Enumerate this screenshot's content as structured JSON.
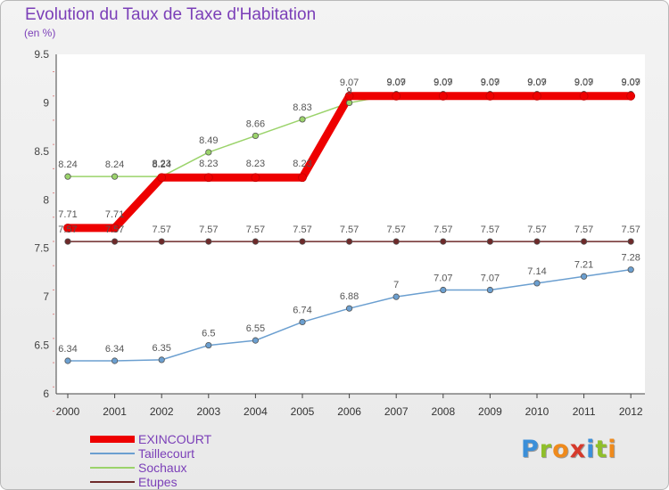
{
  "chart_data": {
    "type": "line",
    "title": "Evolution du Taux de Taxe d'Habitation",
    "subtitle": "(en %)",
    "xlabel": "",
    "ylabel": "",
    "ylim": [
      6,
      9.5
    ],
    "yticks": [
      "6",
      "6.5",
      "7",
      "7.5",
      "8",
      "8.5",
      "9",
      "9.5"
    ],
    "categories": [
      "2000",
      "2001",
      "2002",
      "2003",
      "2004",
      "2005",
      "2006",
      "2007",
      "2008",
      "2009",
      "2010",
      "2011",
      "2012"
    ],
    "grid": false,
    "legend_position": "bottom-left",
    "series": [
      {
        "name": "Etupes",
        "color": "#6e2a2a",
        "values": [
          7.57,
          7.57,
          7.57,
          7.57,
          7.57,
          7.57,
          7.57,
          7.57,
          7.57,
          7.57,
          7.57,
          7.57,
          7.57
        ],
        "labels": [
          "7.57",
          "7.57",
          "7.57",
          "7.57",
          "7.57",
          "7.57",
          "7.57",
          "7.57",
          "7.57",
          "7.57",
          "7.57",
          "7.57",
          "7.57"
        ]
      },
      {
        "name": "Taillecourt",
        "color": "#6b9fd0",
        "values": [
          6.34,
          6.34,
          6.35,
          6.5,
          6.55,
          6.74,
          6.88,
          7.0,
          7.07,
          7.07,
          7.14,
          7.21,
          7.28
        ],
        "labels": [
          "6.34",
          "6.34",
          "6.35",
          "6.5",
          "6.55",
          "6.74",
          "6.88",
          "7",
          "7.07",
          "7.07",
          "7.14",
          "7.21",
          "7.28"
        ]
      },
      {
        "name": "Sochaux",
        "color": "#9bd36b",
        "values": [
          8.24,
          8.24,
          8.24,
          8.49,
          8.66,
          8.83,
          9.0,
          9.09,
          9.09,
          9.09,
          9.09,
          9.09,
          9.09
        ],
        "labels": [
          "8.24",
          "8.24",
          "8.24",
          "8.49",
          "8.66",
          "8.83",
          "9",
          "9.09",
          "9.09",
          "9.09",
          "9.09",
          "9.09",
          "9.09"
        ]
      },
      {
        "name": "EXINCOURT",
        "color": "#ee0000",
        "values": [
          7.71,
          7.71,
          8.23,
          8.23,
          8.23,
          8.23,
          9.07,
          9.07,
          9.07,
          9.07,
          9.07,
          9.07,
          9.07
        ],
        "labels": [
          "7.71",
          "7.71",
          "8.23",
          "8.23",
          "8.23",
          "8.23",
          "9.07",
          "9.07",
          "9.07",
          "9.07",
          "9.07",
          "9.07",
          "9.07"
        ]
      }
    ]
  },
  "legend_items": [
    {
      "label": "EXINCOURT",
      "color": "#ee0000",
      "thickness": 8
    },
    {
      "label": "Taillecourt",
      "color": "#6b9fd0",
      "thickness": 2
    },
    {
      "label": "Sochaux",
      "color": "#9bd36b",
      "thickness": 2
    },
    {
      "label": "Etupes",
      "color": "#6e2a2a",
      "thickness": 2
    }
  ],
  "brand": {
    "letters": [
      "P",
      "r",
      "o",
      "x",
      "i",
      "t",
      "i"
    ],
    "colors": [
      "#3b8fd9",
      "#8fbf2a",
      "#ef8a1c",
      "#d63a2c",
      "#3b8fd9",
      "#8fbf2a",
      "#ef8a1c"
    ]
  }
}
